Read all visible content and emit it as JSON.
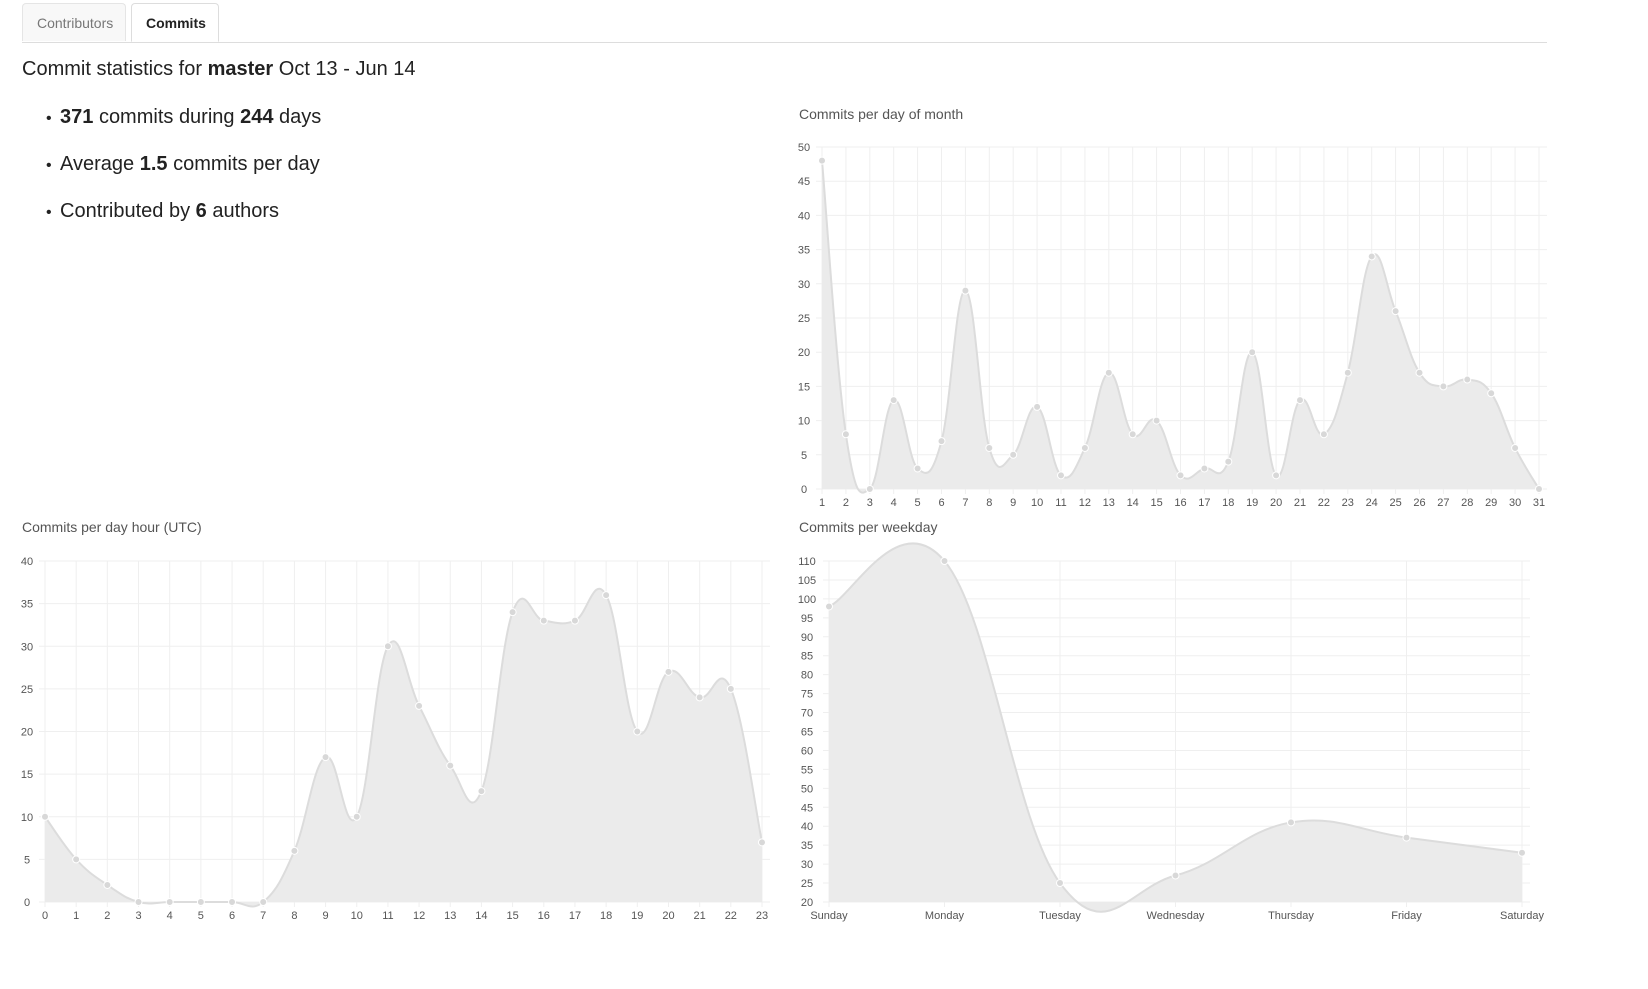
{
  "tabs": [
    {
      "label": "Contributors",
      "active": false
    },
    {
      "label": "Commits",
      "active": true
    }
  ],
  "headline": {
    "prefix": "Commit statistics for",
    "branch": "master",
    "range": "Oct 13 - Jun 14"
  },
  "stats": {
    "commits": "371",
    "commits_text": "commits during",
    "days": "244",
    "days_text": "days",
    "avg_prefix": "Average",
    "avg": "1.5",
    "avg_suffix": "commits per day",
    "authors_prefix": "Contributed by",
    "authors": "6",
    "authors_suffix": "authors"
  },
  "colors": {
    "fill": "#ebebeb",
    "line": "#dcdcdc",
    "point": "#d8d8d8",
    "grid": "#efefef"
  },
  "chart_data": [
    {
      "id": "day_of_month",
      "type": "area",
      "title": "Commits per day of month",
      "categories": [
        "1",
        "2",
        "3",
        "4",
        "5",
        "6",
        "7",
        "8",
        "9",
        "10",
        "11",
        "12",
        "13",
        "14",
        "15",
        "16",
        "17",
        "18",
        "19",
        "20",
        "21",
        "22",
        "23",
        "24",
        "25",
        "26",
        "27",
        "28",
        "29",
        "30",
        "31"
      ],
      "values": [
        48,
        8,
        0,
        13,
        3,
        7,
        29,
        6,
        5,
        12,
        2,
        6,
        17,
        8,
        10,
        2,
        3,
        4,
        20,
        2,
        13,
        8,
        17,
        34,
        26,
        17,
        15,
        16,
        14,
        6,
        0
      ],
      "ylim": [
        0,
        50
      ],
      "yticks": [
        0,
        5,
        10,
        15,
        20,
        25,
        30,
        35,
        40,
        45,
        50
      ],
      "grid": true
    },
    {
      "id": "hour",
      "type": "area",
      "title": "Commits per day hour (UTC)",
      "categories": [
        "0",
        "1",
        "2",
        "3",
        "4",
        "5",
        "6",
        "7",
        "8",
        "9",
        "10",
        "11",
        "12",
        "13",
        "14",
        "15",
        "16",
        "17",
        "18",
        "19",
        "20",
        "21",
        "22",
        "23"
      ],
      "values": [
        10,
        5,
        2,
        0,
        0,
        0,
        0,
        0,
        6,
        17,
        10,
        30,
        23,
        16,
        13,
        34,
        33,
        33,
        36,
        20,
        27,
        24,
        25,
        7
      ],
      "ylim": [
        0,
        40
      ],
      "yticks": [
        0,
        5,
        10,
        15,
        20,
        25,
        30,
        35,
        40
      ],
      "grid": true
    },
    {
      "id": "weekday",
      "type": "area",
      "title": "Commits per weekday",
      "categories": [
        "Sunday",
        "Monday",
        "Tuesday",
        "Wednesday",
        "Thursday",
        "Friday",
        "Saturday"
      ],
      "values": [
        98,
        110,
        25,
        27,
        41,
        37,
        33
      ],
      "ylim": [
        20,
        110
      ],
      "yticks": [
        20,
        25,
        30,
        35,
        40,
        45,
        50,
        55,
        60,
        65,
        70,
        75,
        80,
        85,
        90,
        95,
        100,
        105,
        110
      ],
      "grid": true
    }
  ]
}
